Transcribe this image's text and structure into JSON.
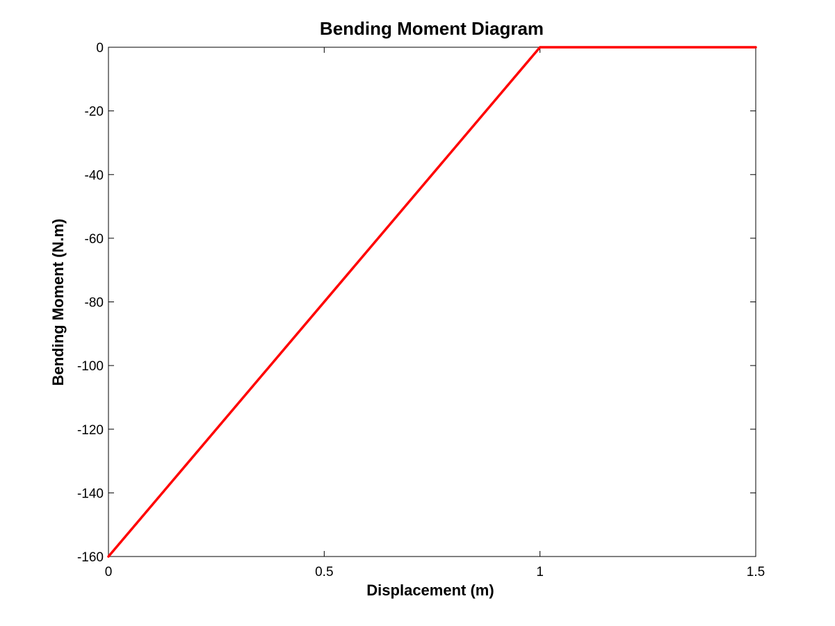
{
  "chart_data": {
    "type": "line",
    "title": "Bending Moment Diagram",
    "xlabel": "Displacement (m)",
    "ylabel": "Bending Moment (N.m)",
    "xlim": [
      0,
      1.5
    ],
    "ylim": [
      -160,
      0
    ],
    "xticks": [
      0,
      0.5,
      1,
      1.5
    ],
    "xtick_labels": [
      "0",
      "0.5",
      "1",
      "1.5"
    ],
    "yticks": [
      0,
      -20,
      -40,
      -60,
      -80,
      -100,
      -120,
      -140,
      -160
    ],
    "ytick_labels": [
      "0",
      "-20",
      "-40",
      "-60",
      "-80",
      "-100",
      "-120",
      "-140",
      "-160"
    ],
    "grid": false,
    "legend": "none",
    "series": [
      {
        "color": "#ff0000",
        "x": [
          0,
          1,
          1.5
        ],
        "y": [
          -160,
          0,
          0
        ]
      }
    ]
  }
}
